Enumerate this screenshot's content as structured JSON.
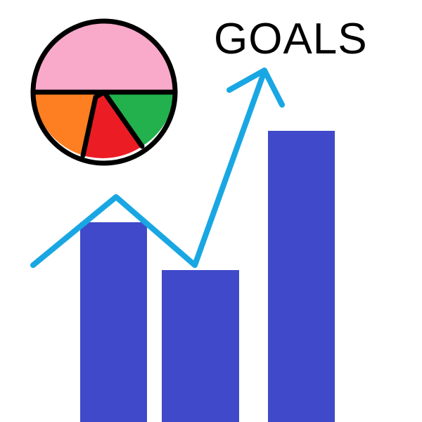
{
  "title": "GOALS",
  "colors": {
    "bars": "#3f49c9",
    "trend_line": "#19a7e3",
    "pie_large": "#f9aaca",
    "pie_orange": "#fd7f22",
    "pie_red": "#ec1c24",
    "pie_green": "#22b14c",
    "outline": "#000000"
  },
  "bars": {
    "relative_heights": [
      0.63,
      0.48,
      0.92
    ]
  },
  "icons": {
    "pie": "pie-chart-icon",
    "arrow": "trend-arrow-icon",
    "bars": "bar-chart-icon"
  }
}
